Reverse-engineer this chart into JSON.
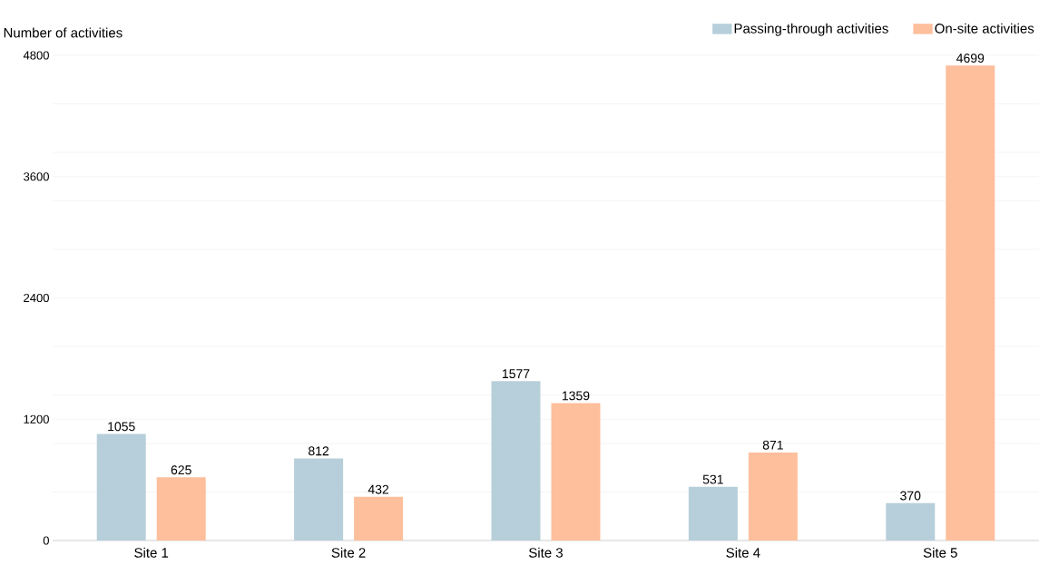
{
  "chart_data": {
    "type": "bar",
    "ylabel": "Number of activities",
    "categories": [
      "Site 1",
      "Site 2",
      "Site 3",
      "Site 4",
      "Site 5"
    ],
    "series": [
      {
        "name": "Passing-through activities",
        "color": "#b7cfda",
        "values": [
          1055,
          812,
          1577,
          531,
          370
        ]
      },
      {
        "name": "On-site activities",
        "color": "#fdbf9c",
        "values": [
          625,
          432,
          1359,
          871,
          4699
        ]
      }
    ],
    "ylim": [
      0,
      4800
    ],
    "yticks": [
      0,
      {
        "value": 480,
        "label": null
      },
      {
        "value": 960,
        "label": null
      },
      1200,
      {
        "value": 1440,
        "label": null
      },
      {
        "value": 1920,
        "label": null
      },
      2400,
      {
        "value": 2880,
        "label": null
      },
      {
        "value": 3360,
        "label": null
      },
      3600,
      {
        "value": 3840,
        "label": null
      },
      {
        "value": 4320,
        "label": null
      },
      4800
    ],
    "grid": "y",
    "legend": "top right",
    "data_labels": true
  }
}
